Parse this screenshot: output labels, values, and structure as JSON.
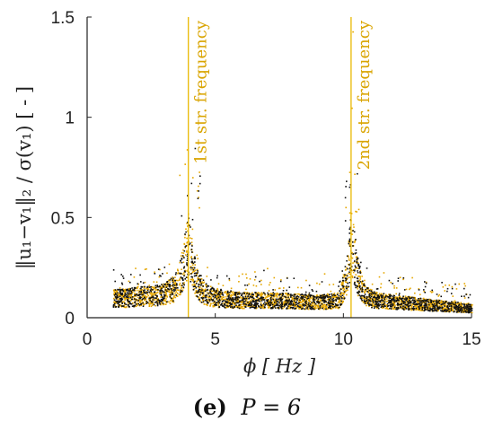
{
  "chart_data": {
    "type": "scatter",
    "xlabel": "ϕ [ Hz ]",
    "ylabel": "‖u₁−v₁‖₂ / σ(v₁)  [ - ]",
    "xlim": [
      0,
      15
    ],
    "ylim": [
      0,
      1.5
    ],
    "xticks": [
      "0",
      "5",
      "10",
      "15"
    ],
    "yticks": [
      "0",
      "0.5",
      "1",
      "1.5"
    ],
    "grid": false,
    "annotations": [
      {
        "text": "1st str. frequency",
        "x": 3.95
      },
      {
        "text": "2nd str. frequency",
        "x": 10.3
      }
    ],
    "series": [
      {
        "color": "#e6a700",
        "x_range": [
          1,
          15
        ]
      },
      {
        "color": "#111111",
        "x_range": [
          1,
          15
        ]
      }
    ],
    "profile": {
      "x": [
        1.0,
        1.5,
        2.0,
        2.5,
        3.0,
        3.4,
        3.6,
        3.8,
        3.95,
        4.1,
        4.3,
        4.6,
        5.0,
        6.0,
        7.0,
        8.0,
        9.0,
        9.8,
        10.1,
        10.3,
        10.5,
        10.8,
        11.2,
        12.0,
        13.0,
        14.0,
        15.0
      ],
      "y": [
        0.1,
        0.1,
        0.11,
        0.11,
        0.12,
        0.15,
        0.2,
        0.3,
        0.38,
        0.25,
        0.16,
        0.12,
        0.1,
        0.09,
        0.09,
        0.085,
        0.08,
        0.09,
        0.2,
        0.4,
        0.22,
        0.12,
        0.09,
        0.08,
        0.07,
        0.06,
        0.05
      ]
    },
    "caption_label": "(e)",
    "caption_text": "P = 6"
  }
}
